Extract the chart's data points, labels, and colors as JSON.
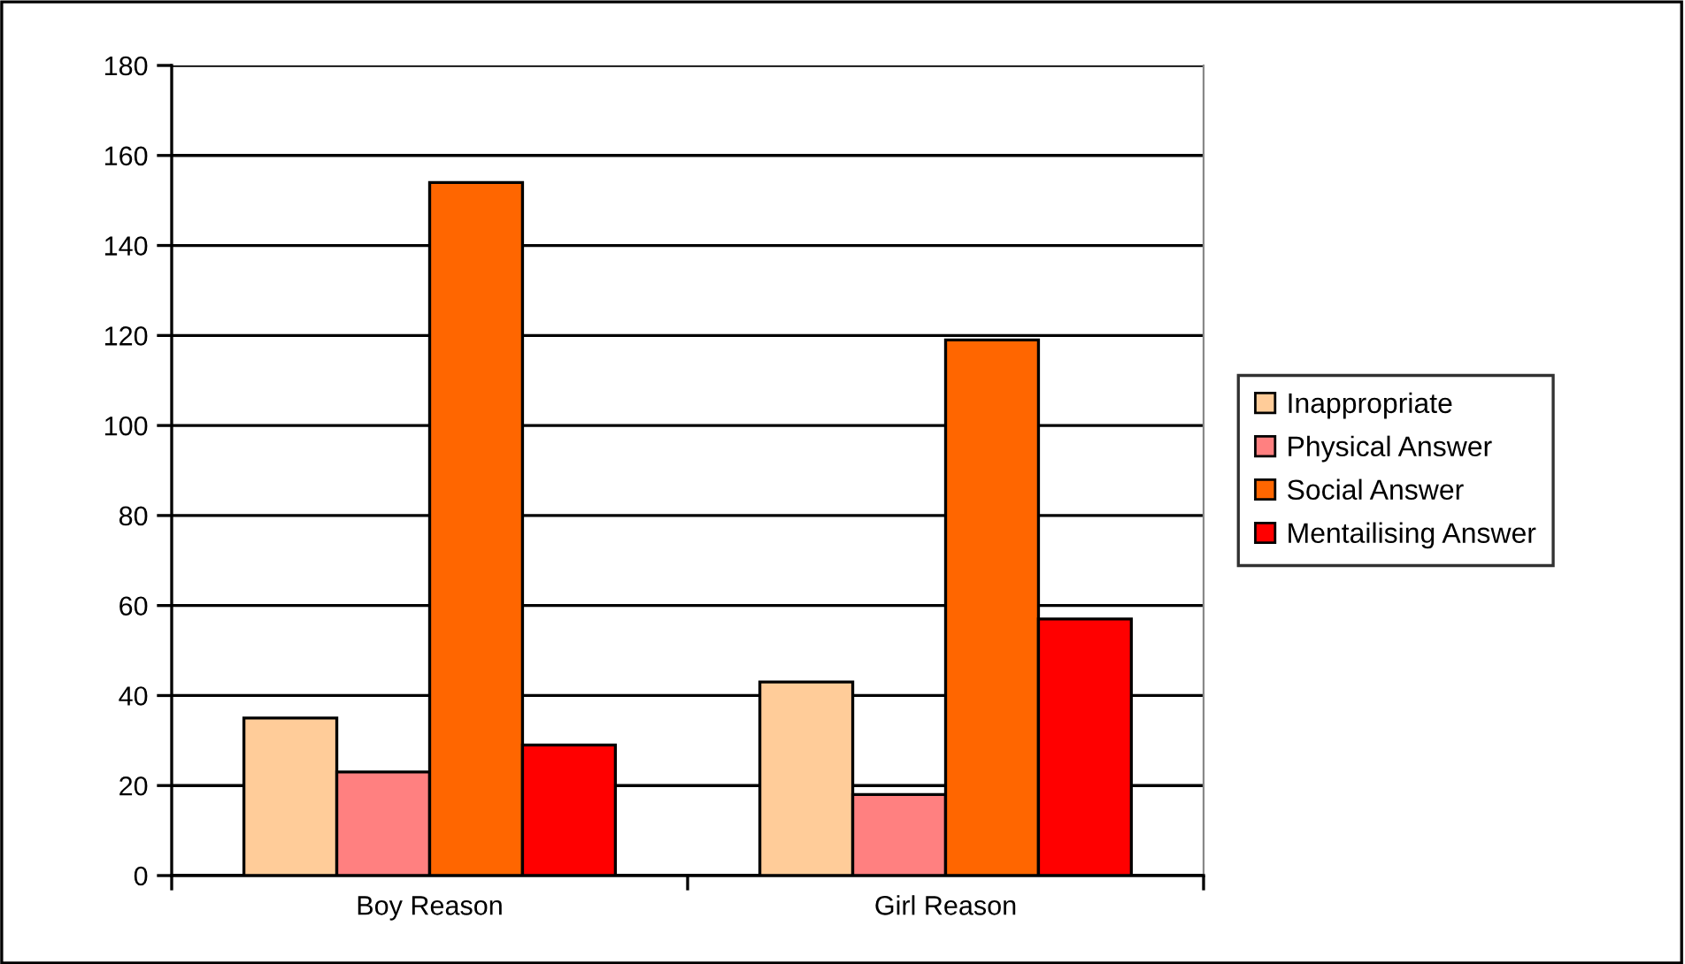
{
  "chart_data": {
    "type": "bar",
    "categories": [
      "Boy Reason",
      "Girl Reason"
    ],
    "series": [
      {
        "name": "Inappropriate",
        "color": "#ffcc99",
        "values": [
          35,
          43
        ]
      },
      {
        "name": "Physical Answer",
        "color": "#ff8080",
        "values": [
          23,
          18
        ]
      },
      {
        "name": "Social Answer",
        "color": "#ff6600",
        "values": [
          154,
          119
        ]
      },
      {
        "name": "Mentailising Answer",
        "color": "#ff0000",
        "values": [
          29,
          57
        ]
      }
    ],
    "ylim": [
      0,
      180
    ],
    "yticks": [
      0,
      20,
      40,
      60,
      80,
      100,
      120,
      140,
      160,
      180
    ],
    "grid": "y",
    "legend": "right"
  }
}
